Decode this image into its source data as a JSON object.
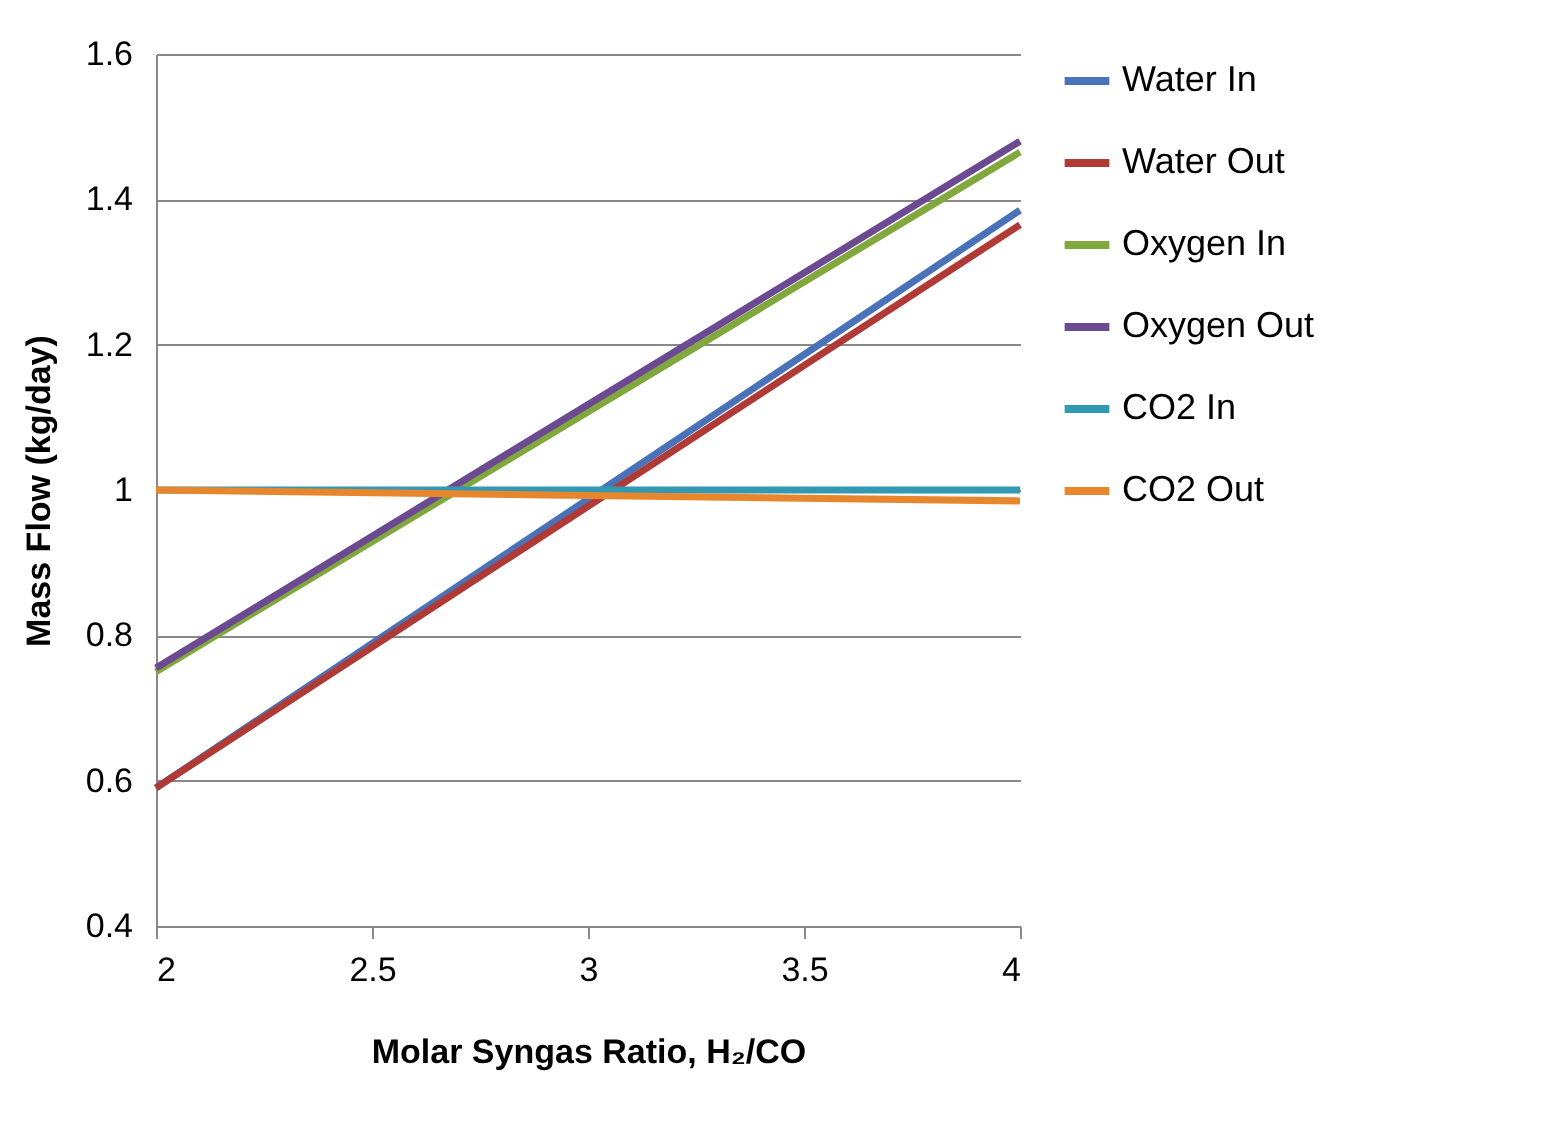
{
  "chart_data": {
    "type": "line",
    "xlabel": "Molar Syngas Ratio, H₂/CO",
    "ylabel": "Mass Flow (kg/day)",
    "x": [
      2,
      4
    ],
    "series": [
      {
        "name": "Water In",
        "color": "#4a72b8",
        "values": [
          0.59,
          1.385
        ]
      },
      {
        "name": "Water Out",
        "color": "#b03a35",
        "values": [
          0.59,
          1.365
        ]
      },
      {
        "name": "Oxygen In",
        "color": "#80a83c",
        "values": [
          0.75,
          1.465
        ]
      },
      {
        "name": "Oxygen Out",
        "color": "#6b4a92",
        "values": [
          0.755,
          1.48
        ]
      },
      {
        "name": "CO2 In",
        "color": "#3399b3",
        "values": [
          1.0,
          1.0
        ]
      },
      {
        "name": "CO2 Out",
        "color": "#e8862e",
        "values": [
          1.0,
          0.985
        ]
      }
    ],
    "xlim": [
      2,
      4
    ],
    "xticks": [
      2,
      2.5,
      3,
      3.5,
      4
    ],
    "ylim": [
      0.4,
      1.6
    ],
    "yticks": [
      0.4,
      0.6,
      0.8,
      1,
      1.2,
      1.4,
      1.6
    ],
    "grid": "y",
    "legend": "right",
    "marker": "none",
    "line_style": "solid"
  }
}
